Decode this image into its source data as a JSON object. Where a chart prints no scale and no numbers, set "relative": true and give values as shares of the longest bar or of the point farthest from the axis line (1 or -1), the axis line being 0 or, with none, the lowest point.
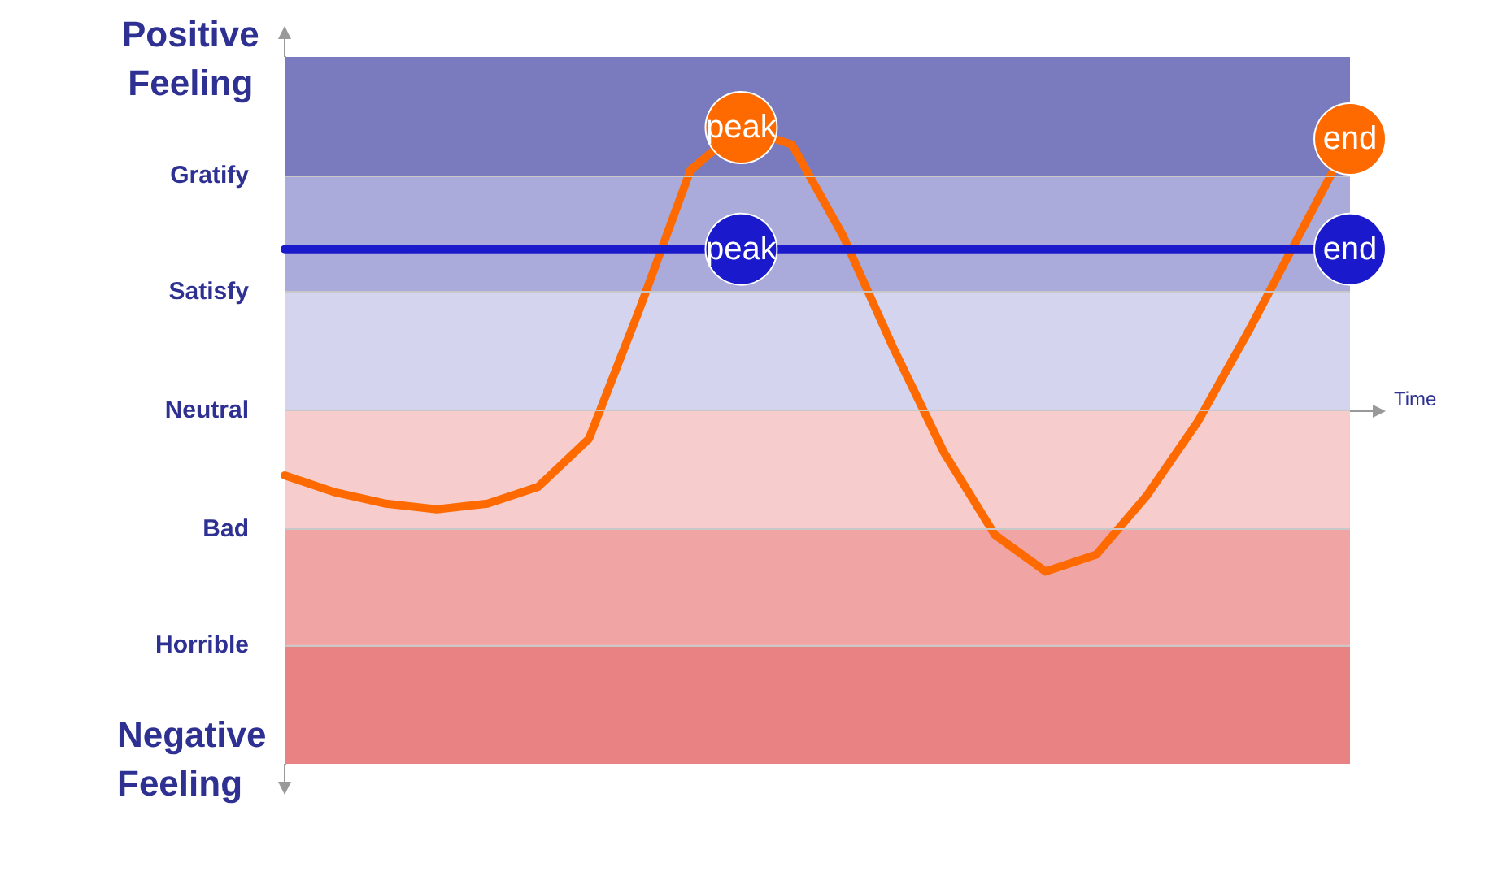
{
  "chart_data": {
    "type": "line",
    "relative": true,
    "ylabel": "Positive Feeling",
    "xlabel": "Time",
    "annotations": [
      "Negative Feeling",
      {
        "text": "peak",
        "y": 1
      },
      {
        "text": "end",
        "y": 0.96
      },
      {
        "text": "peak",
        "y": 0.57
      },
      {
        "text": "end",
        "y": 0.57
      }
    ],
    "categories": [
      null,
      null,
      null,
      null,
      null,
      null,
      null,
      null,
      null,
      null,
      null,
      null,
      null,
      null,
      null,
      null,
      null,
      null,
      null,
      null,
      null,
      null
    ],
    "series": [
      {
        "color": "#ff6a00",
        "values": [
          -0.23,
          -0.29,
          -0.33,
          -0.35,
          -0.33,
          -0.27,
          -0.1,
          0.36,
          0.85,
          1,
          0.94,
          0.62,
          0.22,
          -0.15,
          -0.44,
          -0.57,
          -0.51,
          -0.3,
          -0.04,
          0.28,
          0.62,
          0.96
        ]
      },
      {
        "color": "#1a1acc",
        "values": [
          0.57,
          0.57,
          0.57,
          0.57,
          0.57,
          0.57,
          0.57,
          0.57,
          0.57,
          0.57,
          0.57,
          0.57,
          0.57,
          0.57,
          0.57,
          0.57,
          0.57,
          0.57,
          0.57,
          0.57,
          0.57,
          0.57
        ]
      }
    ],
    "ref_lines": [
      {
        "axis": "y",
        "value": 0.83,
        "label": "Gratify"
      },
      {
        "axis": "y",
        "value": 0.42,
        "label": "Satisfy"
      },
      {
        "axis": "y",
        "value": 0,
        "label": "Neutral"
      },
      {
        "axis": "y",
        "value": -0.42,
        "label": "Bad"
      },
      {
        "axis": "y",
        "value": -0.83,
        "label": "Horrible"
      }
    ],
    "bands": [
      {
        "axis": "y",
        "from": 0.83,
        "to": 1.25,
        "color": "#7a7abf"
      },
      {
        "axis": "y",
        "from": 0.42,
        "to": 0.83,
        "color": "#ababdb"
      },
      {
        "axis": "y",
        "from": 0,
        "to": 0.42,
        "color": "#d4d4ee"
      },
      {
        "axis": "y",
        "from": -0.42,
        "to": 0,
        "color": "#f6cccc"
      },
      {
        "axis": "y",
        "from": -0.83,
        "to": -0.42,
        "color": "#f0a4a4"
      },
      {
        "axis": "y",
        "from": -1.25,
        "to": -0.83,
        "color": "#e98282"
      }
    ],
    "marker": "none",
    "line_style": "solid"
  }
}
